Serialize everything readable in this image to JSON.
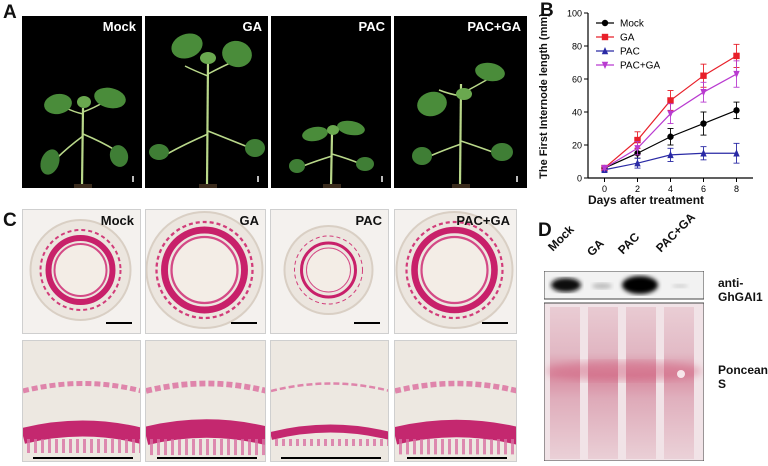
{
  "panelA": {
    "letter": "A",
    "labels": [
      "Mock",
      "GA",
      "PAC",
      "PAC+GA"
    ]
  },
  "panelB": {
    "letter": "B"
  },
  "panelC": {
    "letter": "C",
    "labels": [
      "Mock",
      "GA",
      "PAC",
      "PAC+GA"
    ]
  },
  "panelD": {
    "letter": "D",
    "lanes": [
      "Mock",
      "GA",
      "PAC",
      "PAC+GA"
    ],
    "band_labels": [
      "anti-GhGAI1",
      "Poncean S"
    ]
  },
  "chart_data": {
    "type": "line",
    "x": [
      0,
      2,
      4,
      6,
      8
    ],
    "xlabel": "Days after treatment",
    "ylabel": "The First Internode length (mm)",
    "xlim": [
      -1,
      9
    ],
    "ylim": [
      0,
      100
    ],
    "xticks": [
      0,
      2,
      4,
      6,
      8
    ],
    "yticks": [
      0,
      20,
      40,
      60,
      80,
      100
    ],
    "legend_position": "top-left",
    "series": [
      {
        "name": "Mock",
        "color": "#000000",
        "marker": "circle",
        "values": [
          6,
          15,
          25,
          33,
          41
        ],
        "errors": [
          1,
          3,
          5,
          7,
          5
        ]
      },
      {
        "name": "GA",
        "color": "#e8202a",
        "marker": "square",
        "values": [
          6,
          23,
          47,
          62,
          74
        ],
        "errors": [
          1,
          5,
          6,
          7,
          7
        ]
      },
      {
        "name": "PAC",
        "color": "#2a2aa5",
        "marker": "triangle-up",
        "values": [
          5,
          9,
          14,
          15,
          15
        ],
        "errors": [
          1,
          3,
          4,
          4,
          6
        ]
      },
      {
        "name": "PAC+GA",
        "color": "#b93bd0",
        "marker": "triangle-down",
        "values": [
          6,
          18,
          39,
          52,
          63
        ],
        "errors": [
          1,
          4,
          6,
          6,
          8
        ]
      }
    ]
  }
}
